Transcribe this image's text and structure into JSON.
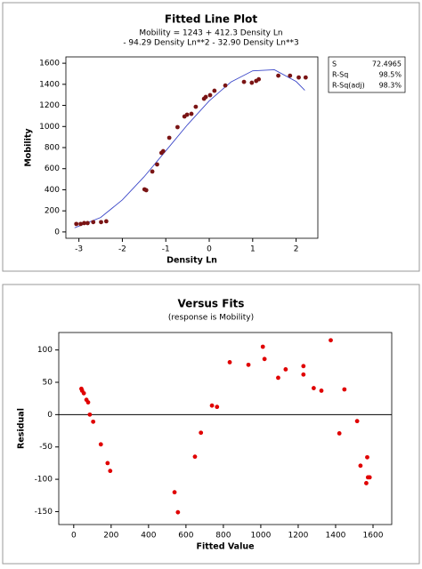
{
  "chart_data": [
    {
      "type": "scatter",
      "title": "Fitted Line Plot",
      "subtitle": [
        "Mobility =  1243 + 412.3 Density Ln",
        "- 94.29 Density Ln**2 - 32.90 Density Ln**3"
      ],
      "x_label": "Density Ln",
      "y_label": "Mobility",
      "x": [
        -3.06,
        -2.96,
        -2.88,
        -2.8,
        -2.67,
        -2.49,
        -2.37,
        -1.49,
        -1.45,
        -1.31,
        -1.2,
        -1.1,
        -1.06,
        -0.92,
        -0.73,
        -0.57,
        -0.51,
        -0.41,
        -0.31,
        -0.12,
        -0.08,
        0.02,
        0.12,
        0.37,
        0.8,
        0.98,
        1.08,
        1.14,
        1.59,
        1.86,
        2.06,
        2.22
      ],
      "values": [
        76,
        76,
        84,
        84,
        93,
        93,
        101,
        404,
        396,
        573,
        640,
        750,
        766,
        893,
        994,
        1095,
        1112,
        1120,
        1187,
        1263,
        1280,
        1297,
        1339,
        1389,
        1423,
        1415,
        1432,
        1448,
        1482,
        1482,
        1465,
        1465
      ],
      "color": "#7a1414",
      "fit": {
        "x": [
          -3.1,
          -2.5,
          -2,
          -1.5,
          -1,
          -0.5,
          0,
          0.5,
          1,
          1.5,
          2,
          2.2
        ],
        "values": [
          39,
          137,
          304,
          523,
          769,
          1017,
          1243,
          1422,
          1528,
          1538,
          1427,
          1343
        ],
        "color": "#3a46c8"
      },
      "xlim": [
        -3.3,
        2.5
      ],
      "ylim": [
        -60,
        1660
      ],
      "xticks": [
        -3,
        -2,
        -1,
        0,
        1,
        2
      ],
      "yticks": [
        0,
        200,
        400,
        600,
        800,
        1000,
        1200,
        1400,
        1600
      ],
      "stats": [
        {
          "label": "S",
          "value": "72.4965"
        },
        {
          "label": "R-Sq",
          "value": "98.5%"
        },
        {
          "label": "R-Sq(adj)",
          "value": "98.3%"
        }
      ]
    },
    {
      "type": "scatter",
      "title": "Versus Fits",
      "subtitle": [
        "(response is Mobility)"
      ],
      "x_label": "Fitted Value",
      "y_label": "Residual",
      "x": [
        41,
        45,
        54,
        68,
        77,
        86,
        104,
        145,
        181,
        195,
        539,
        557,
        648,
        680,
        739,
        766,
        834,
        934,
        1011,
        1020,
        1093,
        1133,
        1228,
        1228,
        1283,
        1324,
        1374,
        1420,
        1447,
        1515,
        1533,
        1569,
        1564,
        1573,
        1582
      ],
      "values": [
        40,
        37,
        33,
        23,
        19,
        0,
        -11,
        -46,
        -75,
        -87,
        -120,
        -151,
        -65,
        -28,
        14,
        12,
        81,
        77,
        105,
        86,
        57,
        70,
        62,
        75,
        41,
        37,
        115,
        -29,
        39,
        -10,
        -79,
        -66,
        -106,
        -97,
        -97
      ],
      "color": "#e00000",
      "hline": 0,
      "xlim": [
        -80,
        1700
      ],
      "ylim": [
        -170,
        127
      ],
      "xticks": [
        0,
        200,
        400,
        600,
        800,
        1000,
        1200,
        1400,
        1600
      ],
      "yticks": [
        -150,
        -100,
        -50,
        0,
        50,
        100
      ]
    }
  ]
}
